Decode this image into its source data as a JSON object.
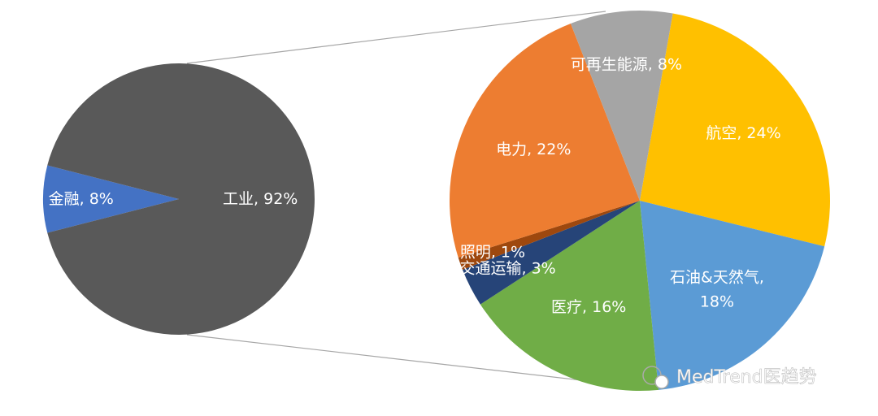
{
  "chart_data": [
    {
      "type": "pie",
      "values": [
        8,
        92
      ],
      "value_labels": [
        "金融, 8%",
        "工业, 92%"
      ],
      "colors": [
        "#4472c4",
        "#595959"
      ]
    },
    {
      "type": "pie",
      "values": [
        24,
        18,
        16,
        3,
        1,
        22,
        8
      ],
      "value_labels": [
        "航空, 24%",
        "石油&天然气,\n18%",
        "医疗, 16%",
        "交通运输, 3%",
        "照明, 1%",
        "电力, 22%",
        "可再生能源, 8%"
      ],
      "colors": [
        "#ffc000",
        "#5b9bd5",
        "#70ad47",
        "#264478",
        "#9e480e",
        "#ed7d31",
        "#a5a5a5"
      ]
    }
  ],
  "watermark": "MedTrend医趋势"
}
